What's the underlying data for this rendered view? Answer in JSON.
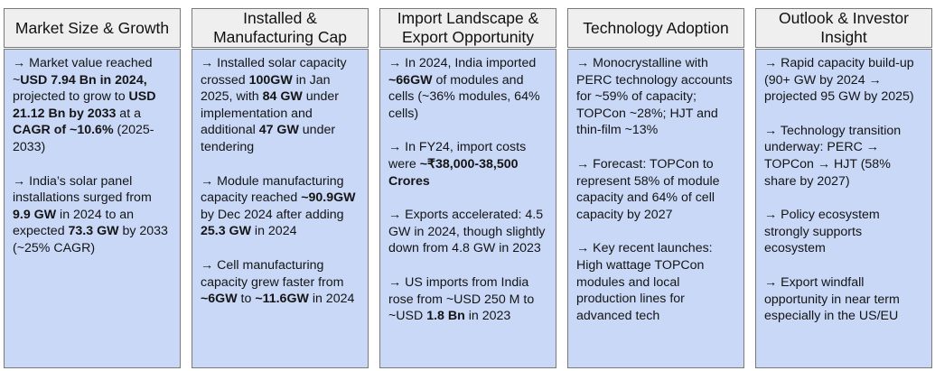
{
  "columns": [
    {
      "title": "Market Size & Growth",
      "paragraphs": [
        [
          {
            "t": "→ Market value reached ~",
            "b": false
          },
          {
            "t": "USD 7.94 Bn in 2024,",
            "b": true
          },
          {
            "t": " projected to grow to ",
            "b": false
          },
          {
            "t": "USD 21.12 Bn by 2033",
            "b": true
          },
          {
            "t": " at a ",
            "b": false
          },
          {
            "t": "CAGR of ~10.6%",
            "b": true
          },
          {
            "t": " (2025-2033)",
            "b": false
          }
        ],
        [
          {
            "t": "→ India’s solar panel installations surged from ",
            "b": false
          },
          {
            "t": "9.9 GW",
            "b": true
          },
          {
            "t": " in 2024 to an expected ",
            "b": false
          },
          {
            "t": "73.3 GW",
            "b": true
          },
          {
            "t": " by 2033 (~25% CAGR)",
            "b": false
          }
        ]
      ]
    },
    {
      "title": "Installed & Manufacturing Cap",
      "paragraphs": [
        [
          {
            "t": "→ Installed solar capacity crossed ",
            "b": false
          },
          {
            "t": "100GW",
            "b": true
          },
          {
            "t": " in Jan 2025, with ",
            "b": false
          },
          {
            "t": "84 GW",
            "b": true
          },
          {
            "t": " under implementation and additional ",
            "b": false
          },
          {
            "t": "47 GW",
            "b": true
          },
          {
            "t": " under tendering",
            "b": false
          }
        ],
        [
          {
            "t": "→ Module manufacturing capacity reached ",
            "b": false
          },
          {
            "t": "~90.9GW",
            "b": true
          },
          {
            "t": " by Dec 2024 after adding ",
            "b": false
          },
          {
            "t": "25.3 GW",
            "b": true
          },
          {
            "t": " in 2024",
            "b": false
          }
        ],
        [
          {
            "t": "→ Cell manufacturing capacity grew faster from ",
            "b": false
          },
          {
            "t": "~6GW",
            "b": true
          },
          {
            "t": " to ",
            "b": false
          },
          {
            "t": "~11.6GW",
            "b": true
          },
          {
            "t": " in 2024",
            "b": false
          }
        ]
      ]
    },
    {
      "title": "Import Landscape & Export Opportunity",
      "paragraphs": [
        [
          {
            "t": "→ In 2024, India imported ",
            "b": false
          },
          {
            "t": "~66GW",
            "b": true
          },
          {
            "t": " of modules and cells (~36% modules, 64% cells)",
            "b": false
          }
        ],
        [
          {
            "t": "→ In FY24, import costs were ",
            "b": false
          },
          {
            "t": "~₹38,000-38,500 Crores",
            "b": true
          }
        ],
        [
          {
            "t": "→ Exports accelerated: 4.5 GW in 2024, though slightly down from 4.8 GW in 2023",
            "b": false
          }
        ],
        [
          {
            "t": "→ US imports from India rose from ~USD 250 M to ~USD ",
            "b": false
          },
          {
            "t": "1.8 Bn",
            "b": true
          },
          {
            "t": " in 2023",
            "b": false
          }
        ]
      ]
    },
    {
      "title": "Technology Adoption",
      "paragraphs": [
        [
          {
            "t": "→ Monocrystalline with PERC technology accounts for ~59% of capacity; TOPCon ~28%; HJT and thin-film ~13%",
            "b": false
          }
        ],
        [
          {
            "t": "→ Forecast: TOPCon to represent 58% of module capacity and 64% of cell capacity by 2027",
            "b": false
          }
        ],
        [
          {
            "t": "→ Key recent launches: High wattage TOPCon modules and local production lines for advanced tech",
            "b": false
          }
        ]
      ]
    },
    {
      "title": "Outlook & Investor Insight",
      "paragraphs": [
        [
          {
            "t": "→ Rapid capacity build-up (90+ GW by 2024 → projected 95 GW by 2025)",
            "b": false
          }
        ],
        [
          {
            "t": "→ Technology transition underway: PERC → TOPCon → HJT (58% share by 2027)",
            "b": false
          }
        ],
        [
          {
            "t": "→ Policy ecosystem strongly supports ecosystem",
            "b": false
          }
        ],
        [
          {
            "t": "→ Export windfall opportunity in near term especially in the US/EU",
            "b": false
          }
        ]
      ]
    }
  ]
}
